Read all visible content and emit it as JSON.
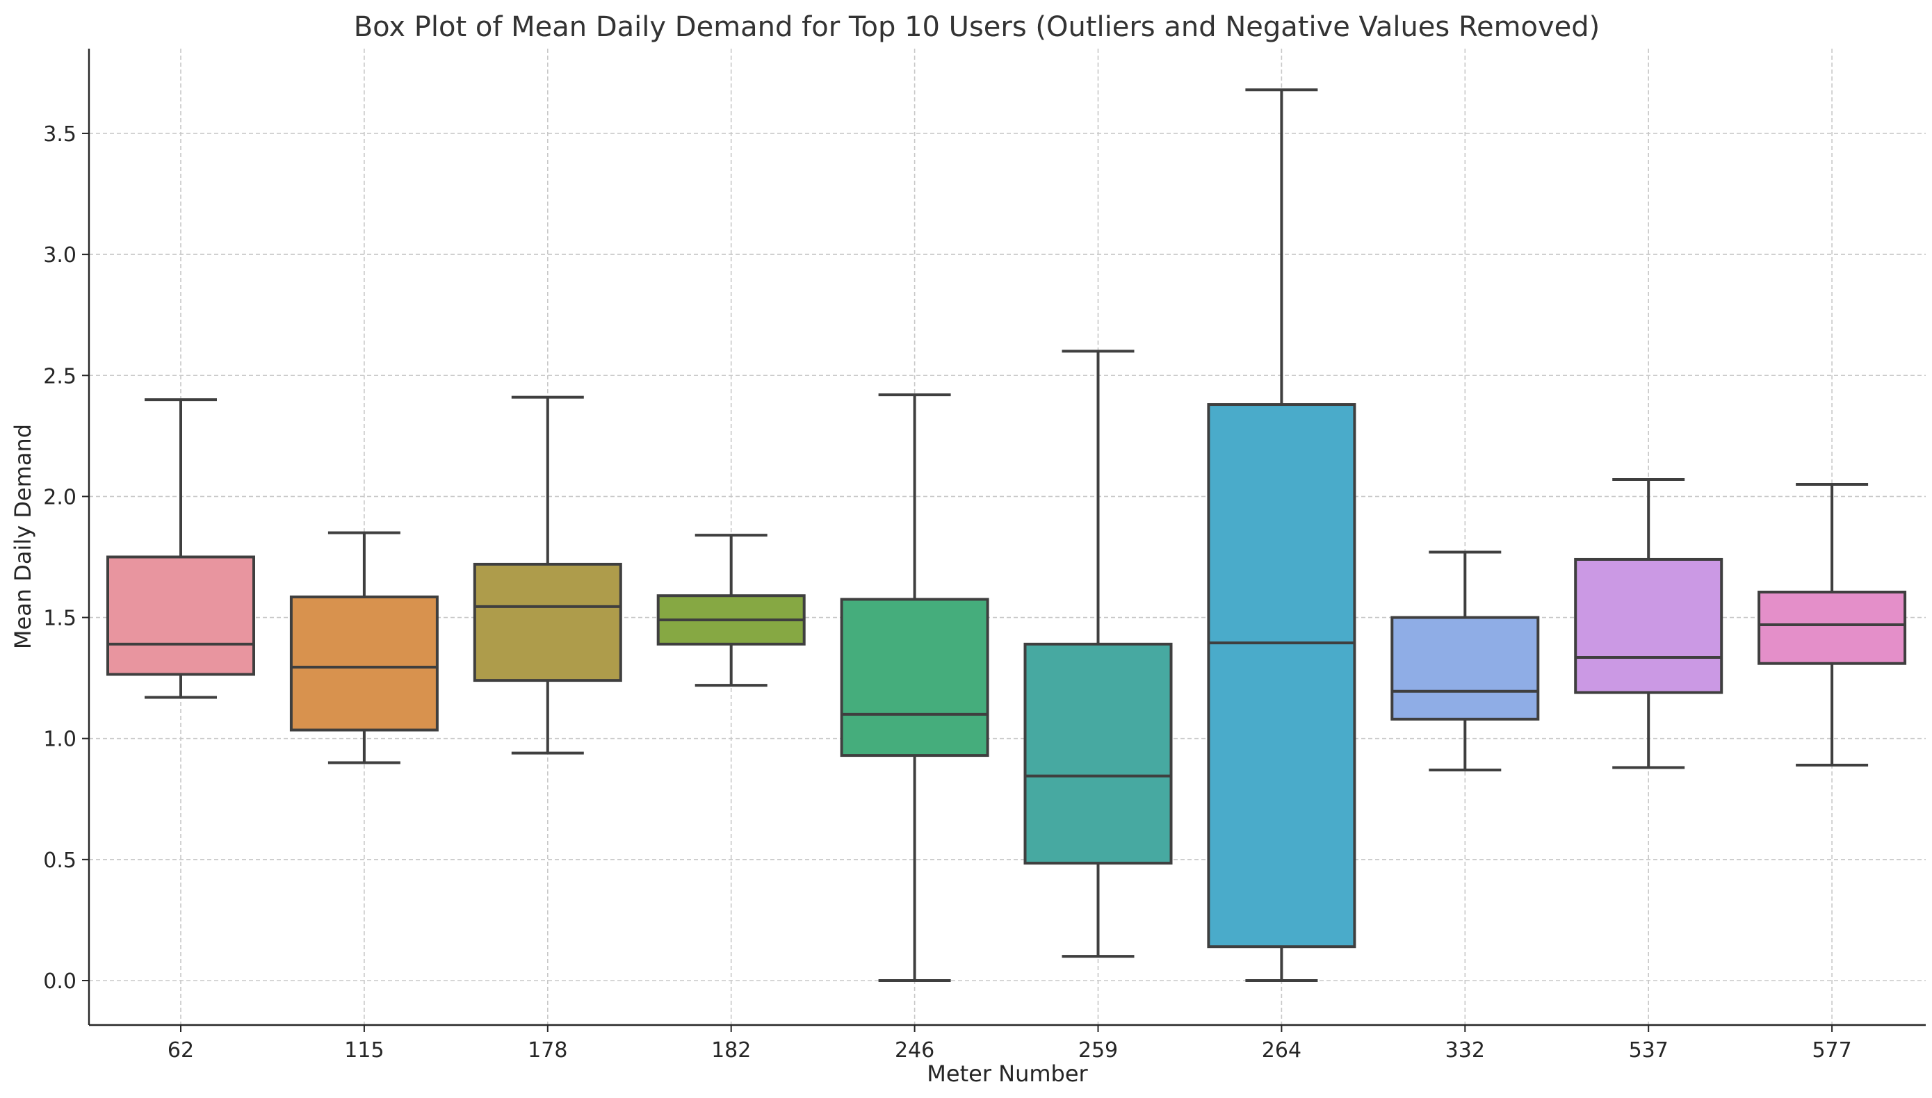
{
  "chart_data": {
    "type": "box",
    "title": "Box Plot of Mean Daily Demand for Top 10 Users (Outliers and Negative Values Removed)",
    "xlabel": "Meter Number",
    "ylabel": "Mean Daily Demand",
    "ylim": [
      -0.18,
      3.87
    ],
    "yticks": [
      "0.0",
      "0.5",
      "1.0",
      "1.5",
      "2.0",
      "2.5",
      "3.0",
      "3.5"
    ],
    "grid": true,
    "categories": [
      "62",
      "115",
      "178",
      "182",
      "246",
      "259",
      "264",
      "332",
      "537",
      "577"
    ],
    "boxes": [
      {
        "whisker_low": 1.17,
        "q1": 1.265,
        "median": 1.39,
        "q3": 1.75,
        "whisker_high": 2.4,
        "color": "#E8959F"
      },
      {
        "whisker_low": 0.9,
        "q1": 1.035,
        "median": 1.295,
        "q3": 1.585,
        "whisker_high": 1.85,
        "color": "#D8924E"
      },
      {
        "whisker_low": 0.94,
        "q1": 1.24,
        "median": 1.545,
        "q3": 1.72,
        "whisker_high": 2.41,
        "color": "#AE9C4B"
      },
      {
        "whisker_low": 1.22,
        "q1": 1.39,
        "median": 1.49,
        "q3": 1.59,
        "whisker_high": 1.84,
        "color": "#86A843"
      },
      {
        "whisker_low": 0.0,
        "q1": 0.93,
        "median": 1.1,
        "q3": 1.575,
        "whisker_high": 2.42,
        "color": "#45AD7C"
      },
      {
        "whisker_low": 0.1,
        "q1": 0.485,
        "median": 0.845,
        "q3": 1.39,
        "whisker_high": 2.6,
        "color": "#47A9A1"
      },
      {
        "whisker_low": 0.0,
        "q1": 0.14,
        "median": 1.395,
        "q3": 2.38,
        "whisker_high": 3.68,
        "color": "#4AABCA"
      },
      {
        "whisker_low": 0.87,
        "q1": 1.08,
        "median": 1.195,
        "q3": 1.5,
        "whisker_high": 1.77,
        "color": "#8FADE6"
      },
      {
        "whisker_low": 0.88,
        "q1": 1.19,
        "median": 1.335,
        "q3": 1.74,
        "whisker_high": 2.07,
        "color": "#CB99E4"
      },
      {
        "whisker_low": 0.89,
        "q1": 1.31,
        "median": 1.47,
        "q3": 1.605,
        "whisker_high": 2.05,
        "color": "#E48FC9"
      }
    ]
  }
}
